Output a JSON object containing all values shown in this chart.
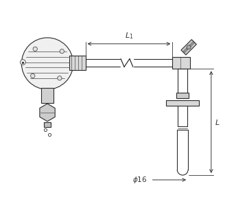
{
  "bg_color": "#ffffff",
  "line_color": "#2a2a2a",
  "dim_color": "#333333",
  "fig_width": 3.6,
  "fig_height": 3.0,
  "dpi": 100,
  "lw": 0.8
}
